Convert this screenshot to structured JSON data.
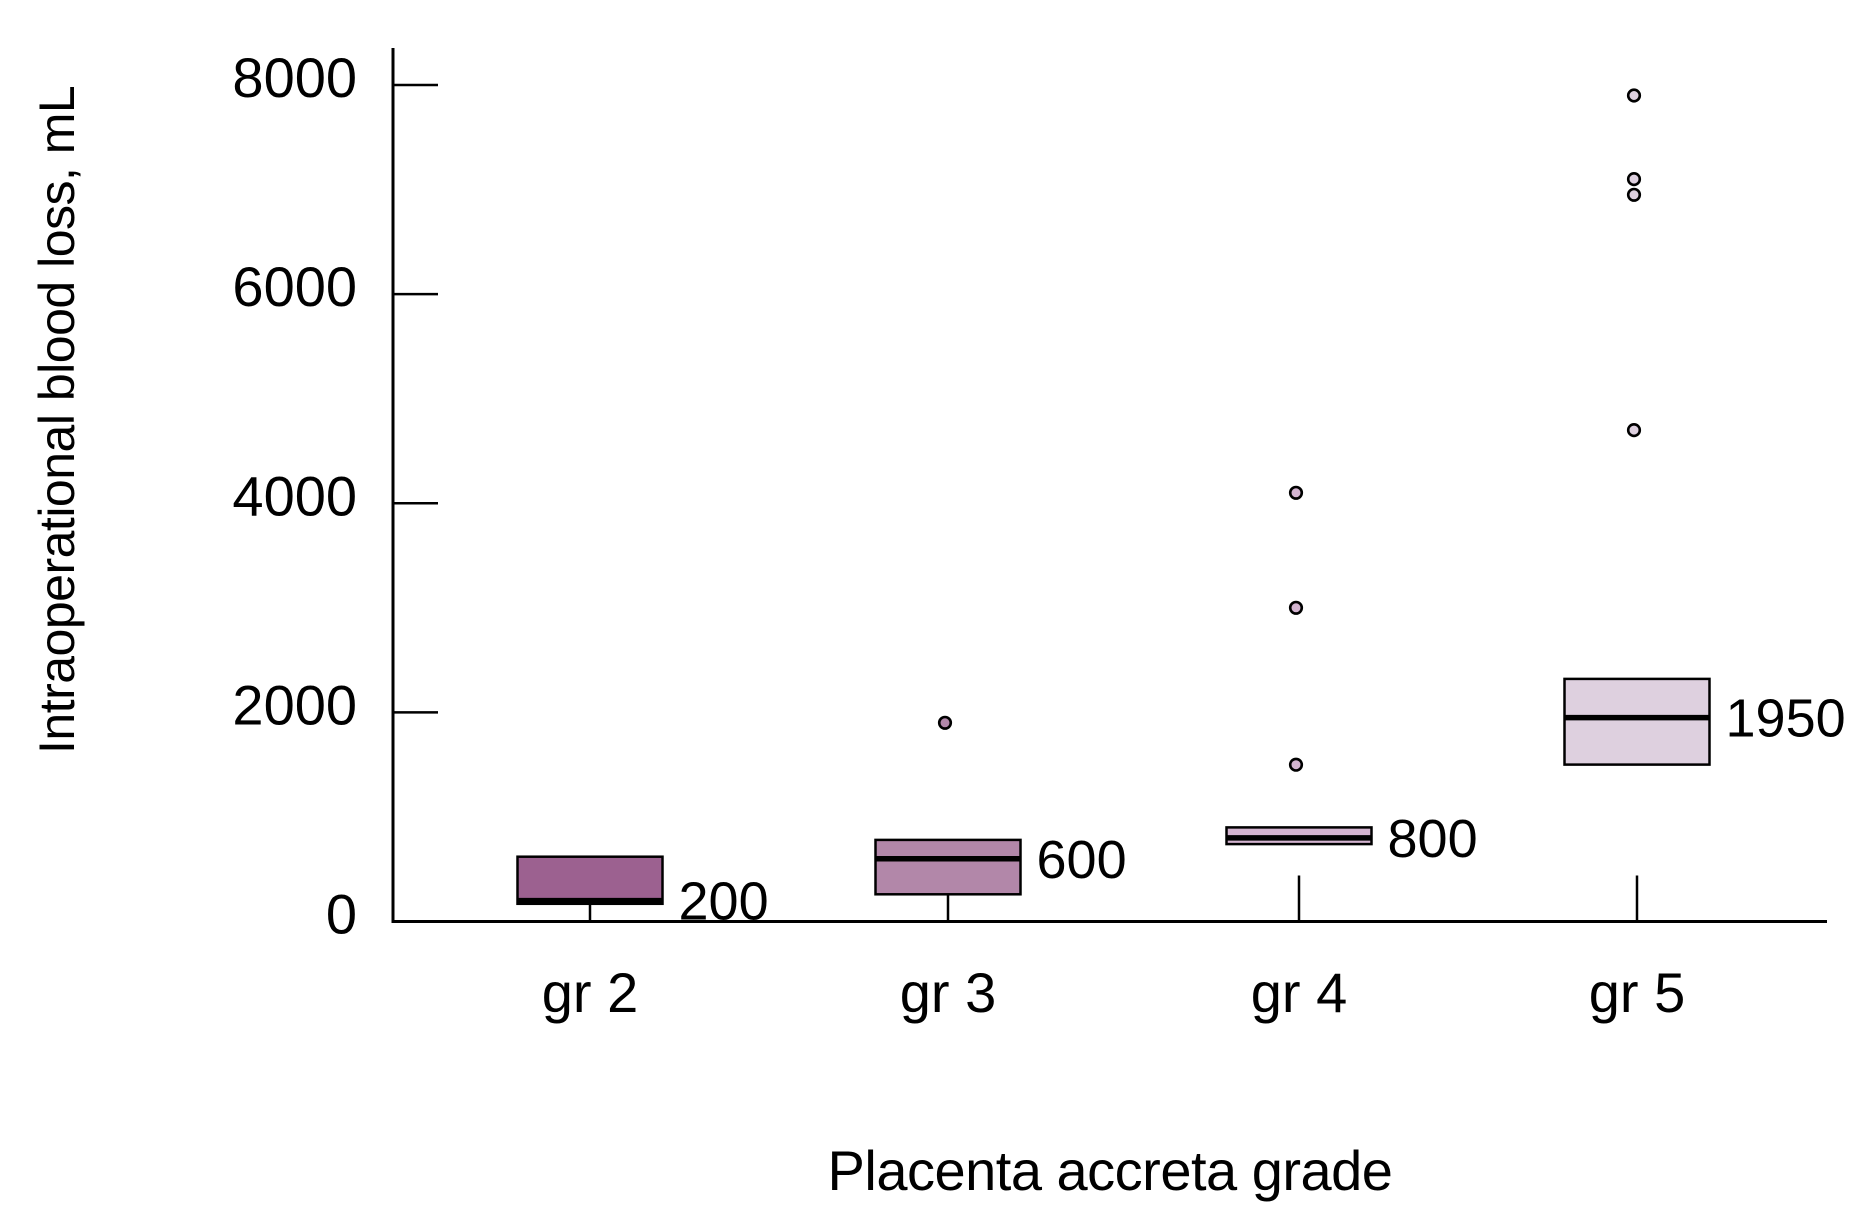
{
  "figure": {
    "background": "#ffffff",
    "axis_color": "#000000",
    "text_color": "#000000"
  },
  "chart_data": {
    "type": "box",
    "title": "",
    "xlabel": "Placenta accreta grade",
    "ylabel": "Intraoperational blood loss, mL",
    "ylim": [
      0,
      8000
    ],
    "ytick_values": [
      0,
      2000,
      4000,
      6000,
      8000
    ],
    "ytick_labels": [
      "0",
      "2000",
      "4000",
      "6000",
      "8000"
    ],
    "categories": [
      "gr 2",
      "gr 3",
      "gr 4",
      "gr 5"
    ],
    "grid": false,
    "legend": null,
    "series": [
      {
        "category": "gr 2",
        "q1": 170,
        "median": 200,
        "q3": 620,
        "outliers": [],
        "median_label": "200",
        "box_color": "#9c6190"
      },
      {
        "category": "gr 3",
        "q1": 260,
        "median": 600,
        "q3": 780,
        "outliers": [
          1900
        ],
        "median_label": "600",
        "box_color": "#b287a9"
      },
      {
        "category": "gr 4",
        "q1": 740,
        "median": 800,
        "q3": 900,
        "outliers": [
          4100,
          3000,
          1500
        ],
        "median_label": "800",
        "box_color": "#d3b4d0"
      },
      {
        "category": "gr 5",
        "q1": 1500,
        "median": 1950,
        "q3": 2320,
        "outliers": [
          7900,
          7100,
          6950,
          4700
        ],
        "median_label": "1950",
        "box_color": "#ded0df"
      }
    ]
  }
}
